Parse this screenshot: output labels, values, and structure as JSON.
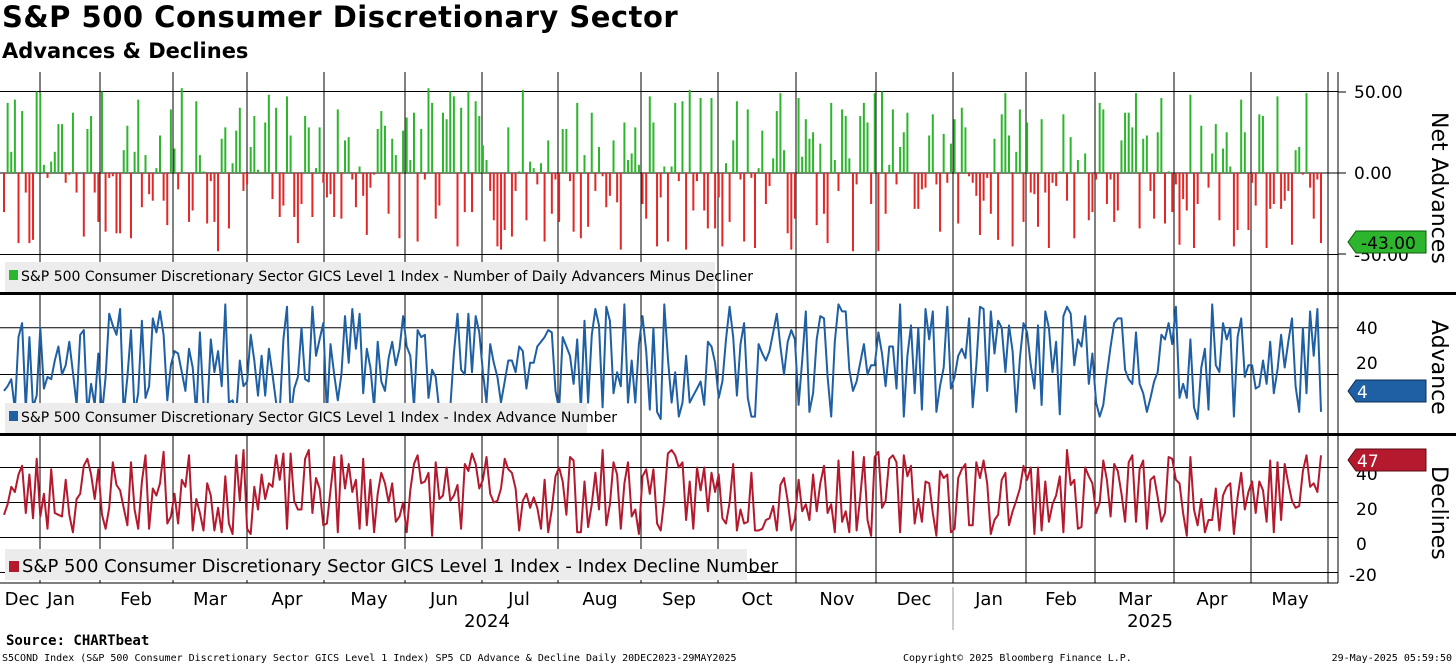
{
  "header": {
    "title": "S&P 500 Consumer Discretionary Sector",
    "subtitle": "Advances & Declines"
  },
  "footer": {
    "source": "Source: CHARTbeat",
    "ticker_line": "S5COND Index (S&P 500 Consumer Discretionary Sector GICS Level 1 Index) SP5 CD Advance & Decline  Daily 20DEC2023-29MAY2025",
    "copyright": "Copyright© 2025 Bloomberg Finance L.P.",
    "timestamp": "29-May-2025 05:59:50"
  },
  "colors": {
    "positive": "#2db52d",
    "negative": "#e32626",
    "advance": "#1f5fa3",
    "decline": "#b5192e",
    "grid": "#000000",
    "legend_bg": "#ececec"
  },
  "chart_data": [
    {
      "type": "bar",
      "panel": "net_advances",
      "axis_title": "Net Advances",
      "legend": "S&P 500 Consumer Discretionary Sector GICS Level 1 Index - Number of Daily Advancers Minus Decliner",
      "ylim": [
        -50,
        63
      ],
      "yticks": [
        50,
        0,
        -50
      ],
      "ytick_labels": [
        "50.00",
        "0.00",
        "-50.00"
      ],
      "last_value": -43,
      "last_label": "-43.00",
      "generator": {
        "seed": 7,
        "count": 364,
        "min": -48,
        "max": 52
      }
    },
    {
      "type": "line",
      "panel": "advance",
      "axis_title": "Advance",
      "legend": "S&P 500 Consumer Discretionary Sector GICS Level 1 Index - Index Advance Number",
      "ylim": [
        -5,
        54
      ],
      "yticks": [
        40,
        20
      ],
      "ytick_labels": [
        "40",
        "20"
      ],
      "last_value": 4,
      "last_label": "4",
      "generator": {
        "seed": 11,
        "count": 364,
        "min": 1,
        "max": 50
      }
    },
    {
      "type": "line",
      "panel": "declines",
      "axis_title": "Declines",
      "legend": "S&P 500 Consumer Discretionary Sector GICS Level 1 Index - Index Decline Number",
      "ylim": [
        -26,
        58
      ],
      "yticks": [
        40,
        20,
        0,
        -20
      ],
      "ytick_labels": [
        "40",
        "20",
        "0",
        "-20"
      ],
      "last_value": 47,
      "last_label": "47",
      "generator": {
        "seed": 23,
        "count": 364,
        "min": 1,
        "max": 50
      }
    }
  ],
  "x_axis": {
    "months": [
      "Dec",
      "Jan",
      "Feb",
      "Mar",
      "Apr",
      "May",
      "Jun",
      "Jul",
      "Aug",
      "Sep",
      "Oct",
      "Nov",
      "Dec",
      "Jan",
      "Feb",
      "Mar",
      "Apr",
      "May"
    ],
    "years": [
      "2024",
      "2025"
    ]
  }
}
